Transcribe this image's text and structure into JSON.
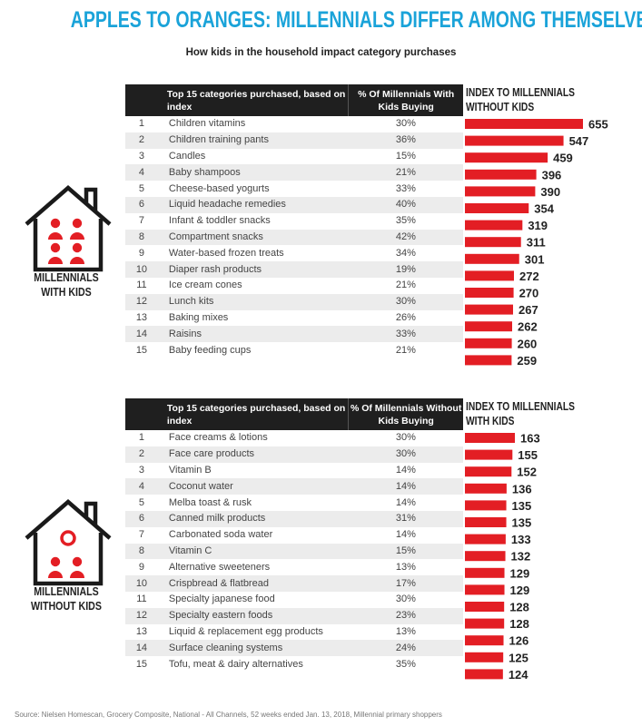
{
  "header": {
    "title": "APPLES TO ORANGES: MILLENNIALS DIFFER AMONG THEMSELVES",
    "subtitle": "How kids in the household impact category purchases"
  },
  "panels": [
    {
      "label_line1": "MILLENNIALS",
      "label_line2": "WITH KIDS",
      "col_category": "Top 15 categories purchased, based on index",
      "col_percent": "% Of Millennials With Kids Buying",
      "index_header": "INDEX TO MILLENNIALS WITHOUT KIDS",
      "rows": [
        {
          "rank": "1",
          "category": "Children vitamins",
          "percent": "30%",
          "index": "655"
        },
        {
          "rank": "2",
          "category": "Children training pants",
          "percent": "36%",
          "index": "547"
        },
        {
          "rank": "3",
          "category": "Candles",
          "percent": "15%",
          "index": "459"
        },
        {
          "rank": "4",
          "category": "Baby shampoos",
          "percent": "21%",
          "index": "396"
        },
        {
          "rank": "5",
          "category": "Cheese-based yogurts",
          "percent": "33%",
          "index": "390"
        },
        {
          "rank": "6",
          "category": "Liquid headache remedies",
          "percent": "40%",
          "index": "354"
        },
        {
          "rank": "7",
          "category": "Infant & toddler snacks",
          "percent": "35%",
          "index": "319"
        },
        {
          "rank": "8",
          "category": "Compartment snacks",
          "percent": "42%",
          "index": "311"
        },
        {
          "rank": "9",
          "category": "Water-based frozen treats",
          "percent": "34%",
          "index": "301"
        },
        {
          "rank": "10",
          "category": "Diaper rash products",
          "percent": "19%",
          "index": "272"
        },
        {
          "rank": "11",
          "category": "Ice cream cones",
          "percent": "21%",
          "index": "270"
        },
        {
          "rank": "12",
          "category": "Lunch kits",
          "percent": "30%",
          "index": "267"
        },
        {
          "rank": "13",
          "category": "Baking mixes",
          "percent": "26%",
          "index": "262"
        },
        {
          "rank": "14",
          "category": "Raisins",
          "percent": "33%",
          "index": "260"
        },
        {
          "rank": "15",
          "category": "Baby feeding cups",
          "percent": "21%",
          "index": "259"
        }
      ]
    },
    {
      "label_line1": "MILLENNIALS",
      "label_line2": "WITHOUT KIDS",
      "col_category": "Top 15 categories purchased, based on index",
      "col_percent": "% Of Millennials Without Kids Buying",
      "index_header": "INDEX TO MILLENNIALS WITH KIDS",
      "rows": [
        {
          "rank": "1",
          "category": "Face creams & lotions",
          "percent": "30%",
          "index": "163"
        },
        {
          "rank": "2",
          "category": "Face care products",
          "percent": "30%",
          "index": "155"
        },
        {
          "rank": "3",
          "category": "Vitamin B",
          "percent": "14%",
          "index": "152"
        },
        {
          "rank": "4",
          "category": "Coconut water",
          "percent": "14%",
          "index": "136"
        },
        {
          "rank": "5",
          "category": "Melba toast & rusk",
          "percent": "14%",
          "index": "135"
        },
        {
          "rank": "6",
          "category": "Canned milk products",
          "percent": "31%",
          "index": "135"
        },
        {
          "rank": "7",
          "category": "Carbonated soda water",
          "percent": "14%",
          "index": "133"
        },
        {
          "rank": "8",
          "category": "Vitamin C",
          "percent": "15%",
          "index": "132"
        },
        {
          "rank": "9",
          "category": "Alternative sweeteners",
          "percent": "13%",
          "index": "129"
        },
        {
          "rank": "10",
          "category": "Crispbread & flatbread",
          "percent": "17%",
          "index": "129"
        },
        {
          "rank": "11",
          "category": "Specialty japanese food",
          "percent": "30%",
          "index": "128"
        },
        {
          "rank": "12",
          "category": "Specialty eastern foods",
          "percent": "23%",
          "index": "128"
        },
        {
          "rank": "13",
          "category": "Liquid & replacement egg products",
          "percent": "13%",
          "index": "126"
        },
        {
          "rank": "14",
          "category": "Surface cleaning systems",
          "percent": "24%",
          "index": "125"
        },
        {
          "rank": "15",
          "category": "Tofu, meat & dairy alternatives",
          "percent": "35%",
          "index": "124"
        }
      ]
    }
  ],
  "source": "Source: Nielsen Homescan, Grocery Composite, National - All Channels, 52 weeks ended Jan. 13, 2018, Millennial primary shoppers",
  "colors": {
    "title": "#1aa3d9",
    "bar": "#e31e24",
    "house": "#1a1a1a",
    "people": "#e31e24",
    "header_bg": "#1f1f1f",
    "stripe": "#ececec"
  },
  "chart_data": [
    {
      "type": "bar",
      "orientation": "horizontal",
      "title": "INDEX TO MILLENNIALS WITHOUT KIDS",
      "categories": [
        "Children vitamins",
        "Children training pants",
        "Candles",
        "Baby shampoos",
        "Cheese-based yogurts",
        "Liquid headache remedies",
        "Infant & toddler snacks",
        "Compartment snacks",
        "Water-based frozen treats",
        "Diaper rash products",
        "Ice cream cones",
        "Lunch kits",
        "Baking mixes",
        "Raisins",
        "Baby feeding cups"
      ],
      "values": [
        655,
        547,
        459,
        396,
        390,
        354,
        319,
        311,
        301,
        272,
        270,
        267,
        262,
        260,
        259
      ]
    },
    {
      "type": "bar",
      "orientation": "horizontal",
      "title": "INDEX TO MILLENNIALS WITH KIDS",
      "categories": [
        "Face creams & lotions",
        "Face care products",
        "Vitamin B",
        "Coconut water",
        "Melba toast & rusk",
        "Canned milk products",
        "Carbonated soda water",
        "Vitamin C",
        "Alternative sweeteners",
        "Crispbread & flatbread",
        "Specialty japanese food",
        "Specialty eastern foods",
        "Liquid & replacement egg products",
        "Surface cleaning systems",
        "Tofu, meat & dairy alternatives"
      ],
      "values": [
        163,
        155,
        152,
        136,
        135,
        135,
        133,
        132,
        129,
        129,
        128,
        128,
        126,
        125,
        124
      ]
    }
  ]
}
